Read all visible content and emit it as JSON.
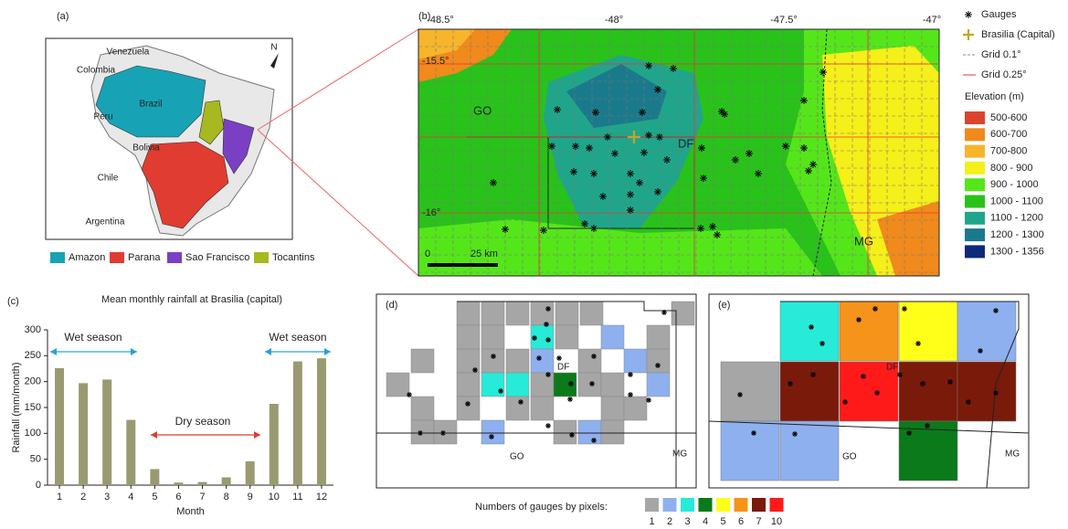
{
  "panel_a": {
    "label": "(a)",
    "north": "N",
    "countries": [
      "Venezuela",
      "Colombia",
      "Peru",
      "Brazil",
      "Bolivia",
      "Chile",
      "Argentina"
    ],
    "legend": [
      {
        "name": "Amazon",
        "color": "#17a3b5"
      },
      {
        "name": "Parana",
        "color": "#e03c31"
      },
      {
        "name": "Sao Francisco",
        "color": "#7b3fc4"
      },
      {
        "name": "Tocantins",
        "color": "#a8b820"
      }
    ]
  },
  "panel_b": {
    "label": "(b)",
    "lon_ticks": [
      "-48.5°",
      "-48°",
      "-47.5°",
      "-47°"
    ],
    "lat_ticks": [
      "-15.5°",
      "-16°"
    ],
    "regions": [
      "GO",
      "DF",
      "MG"
    ],
    "scale": [
      "0",
      "25 km"
    ],
    "legend": [
      "Gauges",
      "Brasilia (Capital)",
      "Grid 0.1°",
      "Grid 0.25°"
    ],
    "elevation_title": "Elevation (m)",
    "elevation_classes": [
      {
        "label": "500-600",
        "color": "#d9452c"
      },
      {
        "label": "600-700",
        "color": "#f08a1c"
      },
      {
        "label": "700-800",
        "color": "#f7b52c"
      },
      {
        "label": "800 - 900",
        "color": "#f5ef1a"
      },
      {
        "label": "900 - 1000",
        "color": "#55e61a"
      },
      {
        "label": "1000 - 1100",
        "color": "#29c21a"
      },
      {
        "label": "1100 - 1200",
        "color": "#1fa68a"
      },
      {
        "label": "1200 - 1300",
        "color": "#1a7a8c"
      },
      {
        "label": "1300 - 1356",
        "color": "#0d2a7a"
      }
    ]
  },
  "chart_data": {
    "type": "bar",
    "label": "(c)",
    "title": "Mean monthly rainfall at Brasilia (capital)",
    "xlabel": "Month",
    "ylabel": "Rainfall (mm/month)",
    "categories": [
      "1",
      "2",
      "3",
      "4",
      "5",
      "6",
      "7",
      "8",
      "9",
      "10",
      "11",
      "12"
    ],
    "values": [
      226,
      197,
      204,
      126,
      31,
      5,
      6,
      15,
      46,
      157,
      239,
      245
    ],
    "color": "#9a9a72",
    "ylim": [
      0,
      300
    ],
    "yticks": [
      0,
      50,
      100,
      150,
      200,
      250,
      300
    ],
    "annotations": [
      "Wet season",
      "Dry season",
      "Wet season"
    ]
  },
  "panel_d": {
    "label": "(d)",
    "regions": [
      "DF",
      "GO",
      "MG"
    ]
  },
  "panel_e": {
    "label": "(e)",
    "regions": [
      "DF",
      "GO",
      "MG"
    ]
  },
  "pixel_legend": {
    "title": "Numbers of gauges by pixels:",
    "classes": [
      {
        "label": "1",
        "color": "#a6a6a6"
      },
      {
        "label": "2",
        "color": "#8fb0ef"
      },
      {
        "label": "3",
        "color": "#28ead8"
      },
      {
        "label": "4",
        "color": "#0a7a1a"
      },
      {
        "label": "5",
        "color": "#ffff1a"
      },
      {
        "label": "6",
        "color": "#f5931a"
      },
      {
        "label": "7",
        "color": "#7a1a0a"
      },
      {
        "label": "10",
        "color": "#ff1a1a"
      }
    ]
  }
}
